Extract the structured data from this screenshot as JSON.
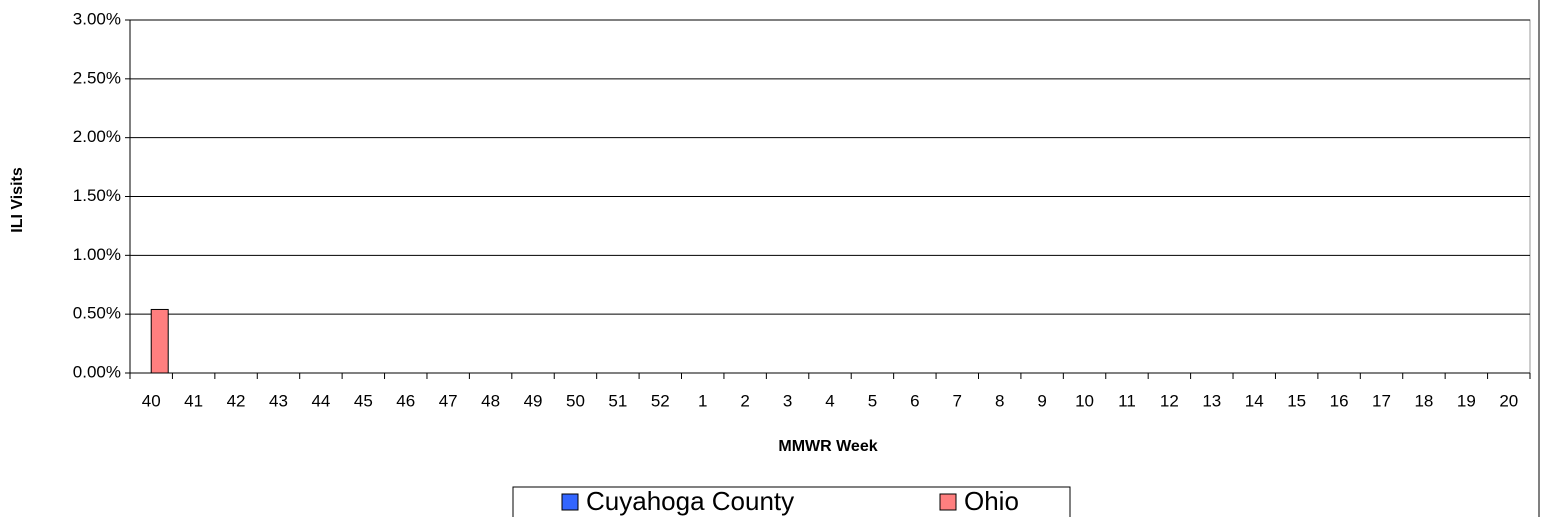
{
  "chart_data": {
    "type": "bar",
    "x_label": "MMWR Week",
    "y_label": "ILI Visits",
    "categories": [
      "40",
      "41",
      "42",
      "43",
      "44",
      "45",
      "46",
      "47",
      "48",
      "49",
      "50",
      "51",
      "52",
      "1",
      "2",
      "3",
      "4",
      "5",
      "6",
      "7",
      "8",
      "9",
      "10",
      "11",
      "12",
      "13",
      "14",
      "15",
      "16",
      "17",
      "18",
      "19",
      "20"
    ],
    "series": [
      {
        "name": "Cuyahoga County",
        "color": "#3366ff",
        "values": [
          null,
          null,
          null,
          null,
          null,
          null,
          null,
          null,
          null,
          null,
          null,
          null,
          null,
          null,
          null,
          null,
          null,
          null,
          null,
          null,
          null,
          null,
          null,
          null,
          null,
          null,
          null,
          null,
          null,
          null,
          null,
          null,
          null
        ]
      },
      {
        "name": "Ohio",
        "color": "#ff7f7f",
        "values": [
          0.54,
          null,
          null,
          null,
          null,
          null,
          null,
          null,
          null,
          null,
          null,
          null,
          null,
          null,
          null,
          null,
          null,
          null,
          null,
          null,
          null,
          null,
          null,
          null,
          null,
          null,
          null,
          null,
          null,
          null,
          null,
          null,
          null
        ]
      }
    ],
    "ylim": [
      0,
      3
    ],
    "yticks": [
      {
        "value": 0,
        "label": "0.00%"
      },
      {
        "value": 0.5,
        "label": "0.50%"
      },
      {
        "value": 1,
        "label": "1.00%"
      },
      {
        "value": 1.5,
        "label": "1.50%"
      },
      {
        "value": 2,
        "label": "2.00%"
      },
      {
        "value": 2.5,
        "label": "2.50%"
      },
      {
        "value": 3,
        "label": "3.00%"
      }
    ],
    "grid": true,
    "legend": "bottom"
  }
}
